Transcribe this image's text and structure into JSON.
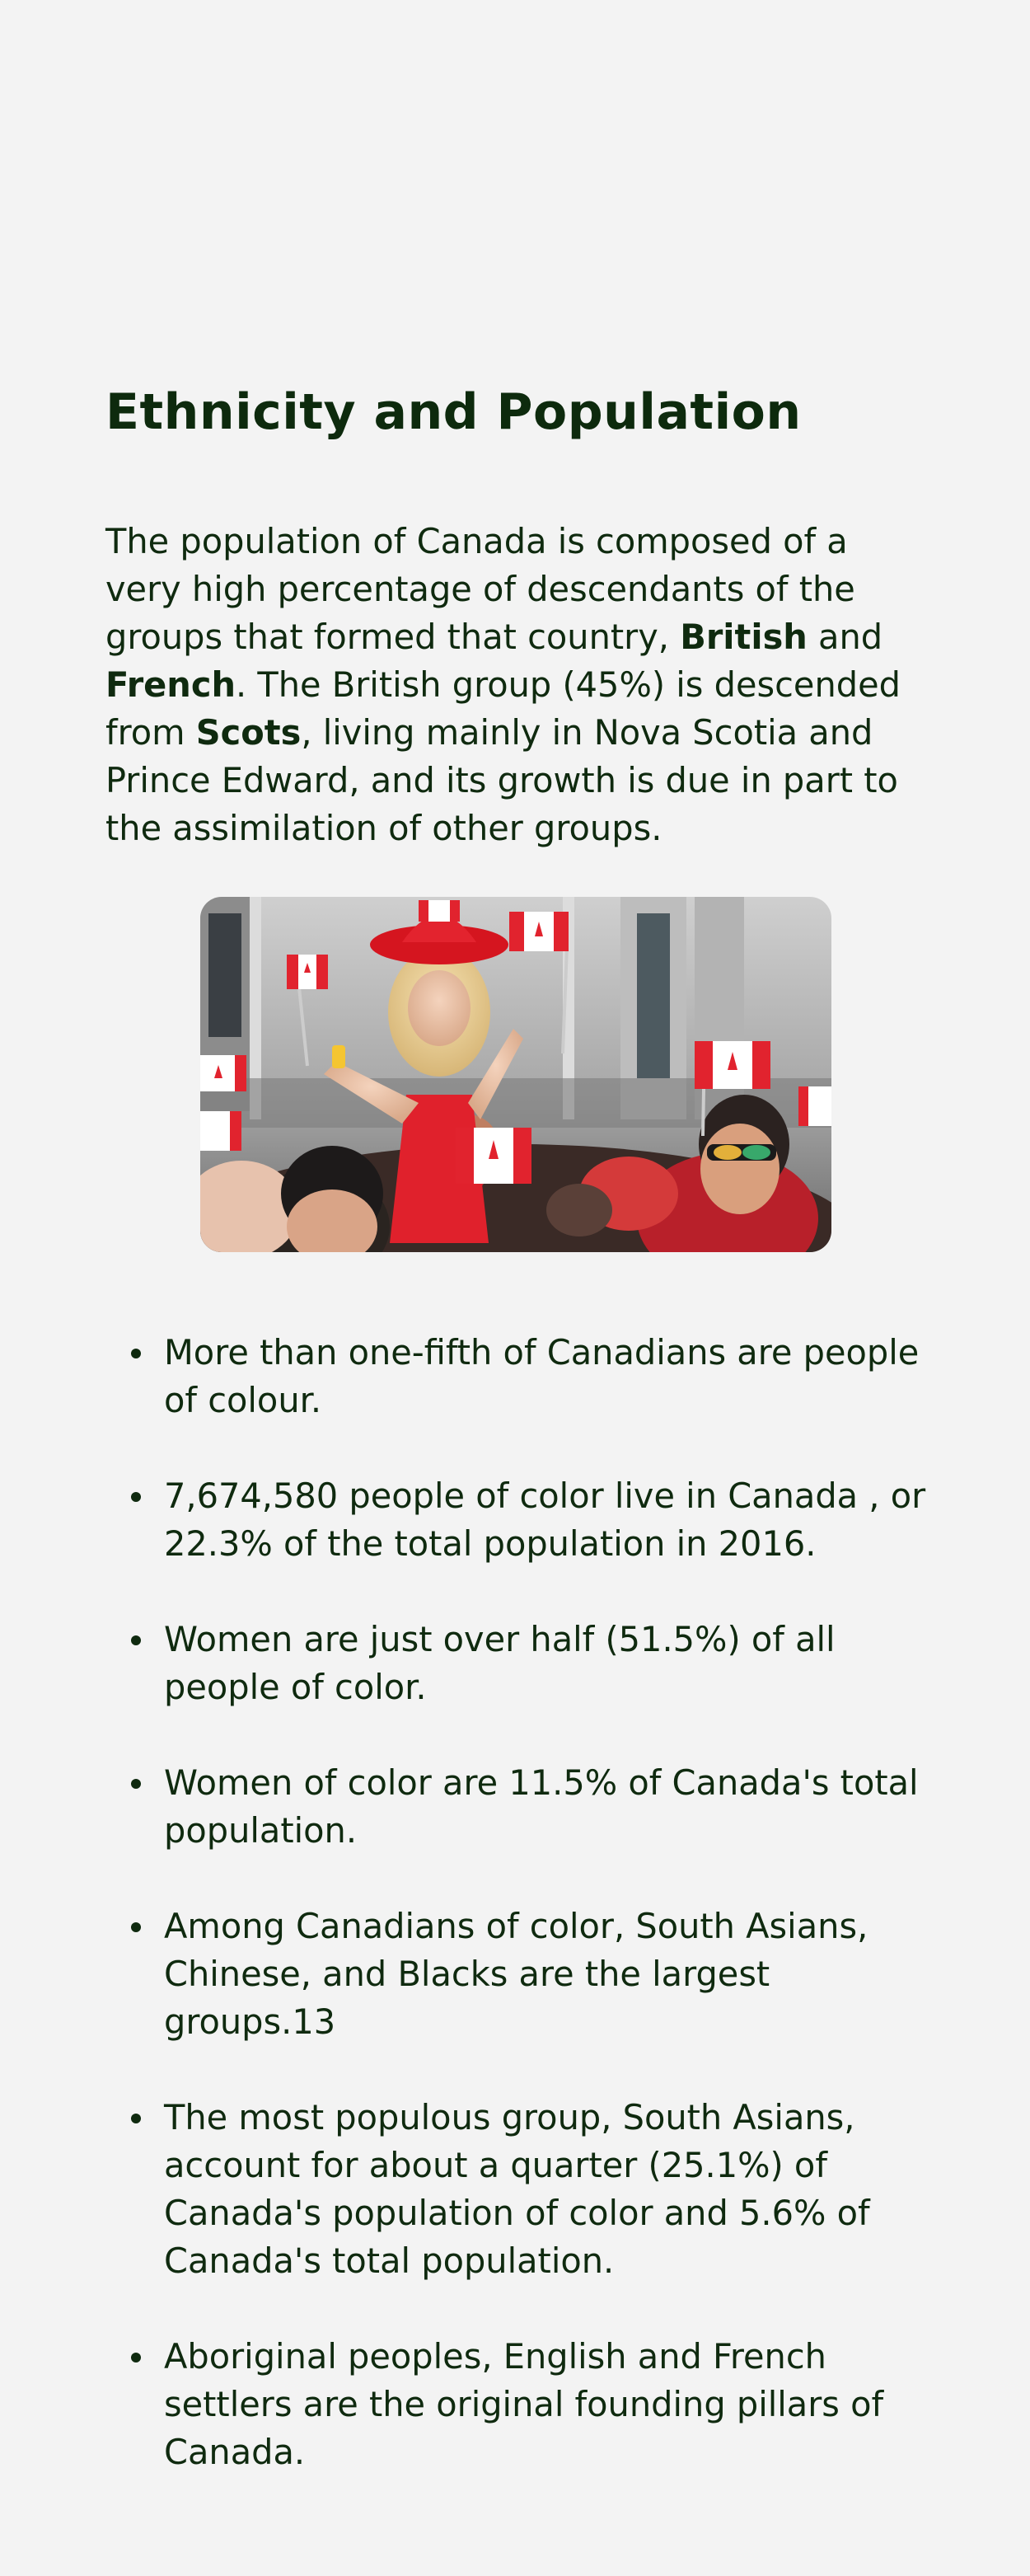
{
  "section": {
    "title": "Ethnicity and Population"
  },
  "intro": {
    "part1": "The population of Canada is composed of a very high percentage of descendants of the groups that formed that country, ",
    "bold1": "British",
    "part2": " and ",
    "bold2": "French",
    "part3": ". The British group (45%) is descended from ",
    "bold3": "Scots",
    "part4": ", living mainly in Nova Scotia and Prince Edward, and its growth is due in part to the assimilation of other groups."
  },
  "photo": {
    "icon": "canada-crowd-photo"
  },
  "facts": [
    "More than one-fifth of Canadians are people of colour.",
    "7,674,580 people of color live in Canada , or 22.3% of the total population in 2016.",
    "Women are just over half (51.5%) of all people of color.",
    "Women of color are 11.5% of Canada's total population.",
    "Among Canadians of color, South Asians, Chinese, and Blacks are the largest groups.13",
    "The most populous group, South Asians, account for about a quarter (25.1%) of Canada's population of color and 5.6% of Canada's total population.",
    "Aboriginal peoples, English and French settlers are the original founding pillars of Canada."
  ],
  "colors": {
    "background": "#f3f3f3",
    "text": "#0f2a0f",
    "flag_red": "#e1232e"
  }
}
